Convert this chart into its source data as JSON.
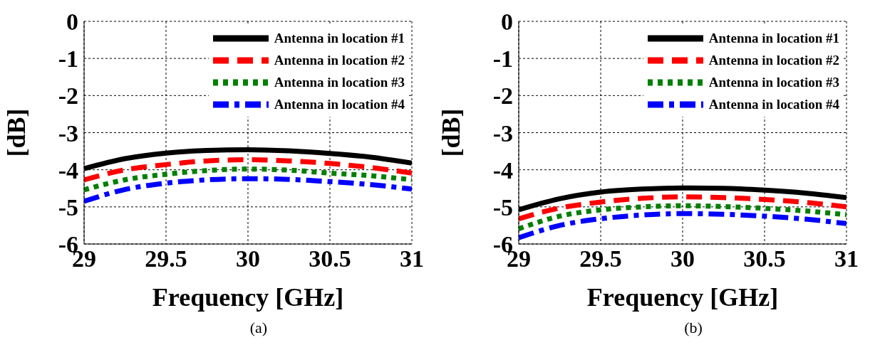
{
  "chart_data": [
    {
      "type": "line",
      "xlabel": "Frequency [GHz]",
      "ylabel": "[dB]",
      "annotations": [
        "(a)"
      ],
      "x": [
        29,
        29.25,
        29.5,
        29.75,
        30,
        30.25,
        30.5,
        30.75,
        31
      ],
      "xlim": [
        29,
        31
      ],
      "xticks": [
        29,
        29.5,
        30,
        30.5,
        31
      ],
      "ylim": [
        -6,
        0
      ],
      "yticks": [
        -6,
        -5,
        -4,
        -3,
        -2,
        -1,
        0
      ],
      "grid": true,
      "legend": "top right",
      "marker": "none",
      "series": [
        {
          "name": "Antenna in location #1",
          "color": "#000000",
          "line_style": "solid",
          "values": [
            -3.97,
            -3.7,
            -3.55,
            -3.48,
            -3.46,
            -3.49,
            -3.56,
            -3.66,
            -3.82
          ]
        },
        {
          "name": "Antenna in location #2",
          "color": "#ff0000",
          "line_style": "dashed",
          "values": [
            -4.27,
            -4.0,
            -3.86,
            -3.76,
            -3.73,
            -3.76,
            -3.83,
            -3.94,
            -4.09
          ]
        },
        {
          "name": "Antenna in location #3",
          "color": "#008000",
          "line_style": "dotted",
          "values": [
            -4.54,
            -4.27,
            -4.12,
            -4.02,
            -3.98,
            -4.01,
            -4.09,
            -4.16,
            -4.27
          ]
        },
        {
          "name": "Antenna in location #4",
          "color": "#0000ff",
          "line_style": "dashdot",
          "values": [
            -4.85,
            -4.53,
            -4.36,
            -4.27,
            -4.24,
            -4.26,
            -4.32,
            -4.4,
            -4.52
          ]
        }
      ]
    },
    {
      "type": "line",
      "xlabel": "Frequency [GHz]",
      "ylabel": "[dB]",
      "annotations": [
        "(b)"
      ],
      "x": [
        29,
        29.25,
        29.5,
        29.75,
        30,
        30.25,
        30.5,
        30.75,
        31
      ],
      "xlim": [
        29,
        31
      ],
      "xticks": [
        29,
        29.5,
        30,
        30.5,
        31
      ],
      "ylim": [
        -6,
        0
      ],
      "yticks": [
        -6,
        -5,
        -4,
        -3,
        -2,
        -1,
        0
      ],
      "grid": true,
      "legend": "top right",
      "marker": "none",
      "series": [
        {
          "name": "Antenna in location #1",
          "color": "#000000",
          "line_style": "solid",
          "values": [
            -5.08,
            -4.78,
            -4.6,
            -4.52,
            -4.49,
            -4.5,
            -4.55,
            -4.63,
            -4.75
          ]
        },
        {
          "name": "Antenna in location #2",
          "color": "#ff0000",
          "line_style": "dashed",
          "values": [
            -5.32,
            -5.03,
            -4.87,
            -4.77,
            -4.73,
            -4.75,
            -4.8,
            -4.88,
            -5.0
          ]
        },
        {
          "name": "Antenna in location #3",
          "color": "#008000",
          "line_style": "dotted",
          "values": [
            -5.59,
            -5.25,
            -5.08,
            -5.0,
            -4.97,
            -4.99,
            -5.04,
            -5.11,
            -5.21
          ]
        },
        {
          "name": "Antenna in location #4",
          "color": "#0000ff",
          "line_style": "dashdot",
          "values": [
            -5.83,
            -5.5,
            -5.32,
            -5.22,
            -5.18,
            -5.2,
            -5.25,
            -5.33,
            -5.45
          ]
        }
      ]
    }
  ]
}
